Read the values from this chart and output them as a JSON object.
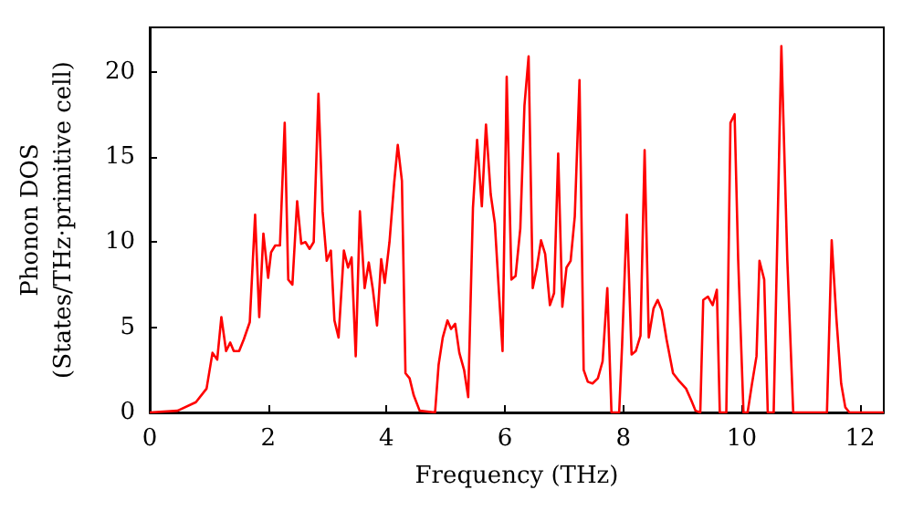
{
  "chart_data": {
    "type": "line",
    "xlabel": "Frequency (THz)",
    "ylabel": "Phonon DOS\n(States/THz·primitive cell)",
    "xlim": [
      0,
      12.4
    ],
    "xticks": [
      0,
      2,
      4,
      6,
      8,
      10,
      12
    ],
    "ylim": [
      0,
      22.6
    ],
    "yticks": [
      0,
      5,
      10,
      15,
      20
    ],
    "grid": false,
    "marker": "none",
    "line_style": "solid",
    "series": [
      {
        "color": "#ff0000",
        "x": [
          0,
          0.47,
          0.78,
          0.96,
          1.06,
          1.14,
          1.21,
          1.29,
          1.36,
          1.42,
          1.51,
          1.59,
          1.69,
          1.78,
          1.85,
          1.92,
          2.0,
          2.05,
          2.12,
          2.2,
          2.28,
          2.34,
          2.41,
          2.49,
          2.56,
          2.63,
          2.7,
          2.77,
          2.85,
          2.92,
          2.99,
          3.06,
          3.12,
          3.19,
          3.28,
          3.35,
          3.41,
          3.48,
          3.55,
          3.63,
          3.7,
          3.77,
          3.84,
          3.91,
          3.97,
          4.05,
          4.13,
          4.19,
          4.26,
          4.32,
          4.39,
          4.46,
          4.56,
          4.82,
          4.88,
          4.95,
          5.03,
          5.09,
          5.16,
          5.23,
          5.31,
          5.38,
          5.46,
          5.53,
          5.61,
          5.68,
          5.76,
          5.83,
          5.9,
          5.96,
          6.03,
          6.11,
          6.18,
          6.26,
          6.33,
          6.4,
          6.47,
          6.54,
          6.61,
          6.68,
          6.76,
          6.83,
          6.9,
          6.97,
          7.04,
          7.11,
          7.18,
          7.26,
          7.33,
          7.4,
          7.48,
          7.57,
          7.65,
          7.73,
          7.8,
          7.93,
          7.98,
          8.06,
          8.14,
          8.21,
          8.29,
          8.36,
          8.43,
          8.51,
          8.58,
          8.65,
          8.73,
          8.84,
          8.93,
          9.06,
          9.15,
          9.22,
          9.3,
          9.35,
          9.43,
          9.51,
          9.58,
          9.63,
          9.74,
          9.81,
          9.88,
          9.94,
          10.03,
          10.1,
          10.17,
          10.25,
          10.3,
          10.38,
          10.44,
          10.54,
          10.67,
          10.77,
          10.87,
          11.44,
          11.52,
          11.6,
          11.68,
          11.75,
          11.82,
          12.4
        ],
        "values": [
          0,
          0.1,
          0.6,
          1.4,
          3.5,
          3.1,
          5.6,
          3.6,
          4.1,
          3.6,
          3.6,
          4.3,
          5.3,
          11.6,
          5.6,
          10.5,
          7.9,
          9.4,
          9.8,
          9.8,
          17,
          7.8,
          7.5,
          12.4,
          9.9,
          10,
          9.6,
          10,
          18.7,
          11.8,
          8.9,
          9.5,
          5.4,
          4.4,
          9.5,
          8.5,
          9.1,
          3.3,
          11.8,
          7.3,
          8.8,
          7.2,
          5.1,
          9,
          7.6,
          10,
          13.5,
          15.7,
          13.6,
          2.3,
          2,
          1,
          0.1,
          0,
          2.8,
          4.4,
          5.4,
          4.9,
          5.2,
          3.5,
          2.5,
          0.9,
          12,
          16,
          12.1,
          16.9,
          12.8,
          11.1,
          7,
          3.6,
          19.7,
          7.8,
          8,
          10.8,
          18,
          20.9,
          7.3,
          8.5,
          10.1,
          9.3,
          6.3,
          7,
          15.2,
          6.2,
          8.5,
          8.9,
          11.5,
          19.5,
          2.5,
          1.8,
          1.7,
          2,
          3,
          7.3,
          0,
          0,
          4,
          11.6,
          3.4,
          3.6,
          4.5,
          15.4,
          4.4,
          6.1,
          6.6,
          6,
          4.3,
          2.3,
          1.9,
          1.4,
          0.7,
          0.1,
          0,
          6.6,
          6.8,
          6.3,
          7.2,
          0,
          0,
          17,
          17.5,
          9,
          0,
          0,
          1.6,
          3.3,
          8.9,
          7.8,
          0,
          0,
          21.5,
          9,
          0,
          0,
          10.1,
          5.5,
          1.7,
          0.3,
          0,
          0
        ]
      }
    ]
  }
}
